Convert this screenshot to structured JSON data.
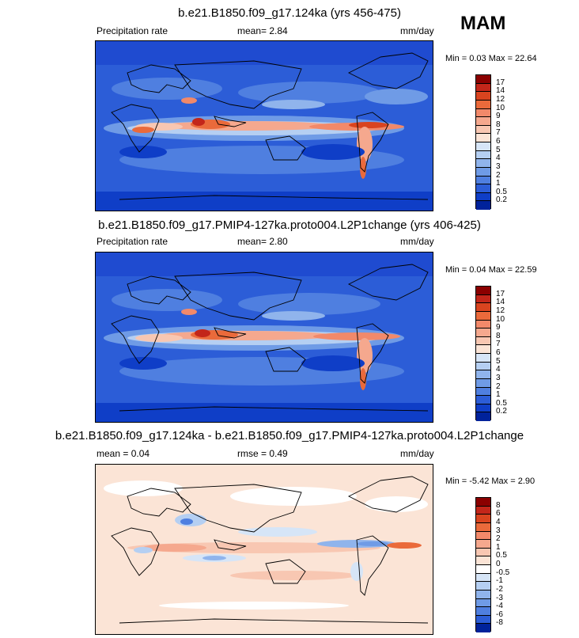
{
  "season": "MAM",
  "units": "mm/day",
  "panels": [
    {
      "title": "b.e21.B1850.f09_g17.124ka (yrs 456-475)",
      "left_label": "Precipitation rate",
      "center_label": "mean=  2.84",
      "right_label": "mm/day",
      "minmax": "Min =  0.03 Max =  22.64",
      "map_type": "absolute",
      "colorbar": {
        "labels": [
          "17",
          "14",
          "12",
          "10",
          "9",
          "8",
          "7",
          "6",
          "5",
          "4",
          "3",
          "2",
          "1",
          "0.5",
          "0.2"
        ],
        "colors": [
          "#8b0000",
          "#c3261a",
          "#d9441f",
          "#ea6a3b",
          "#f2896a",
          "#f5a88e",
          "#f8c7b2",
          "#fbe4d6",
          "#d6e5f7",
          "#b5cff2",
          "#90b4ec",
          "#6f9be6",
          "#4f7fe0",
          "#2c5dd7",
          "#0f3ec7",
          "#00229b"
        ]
      }
    },
    {
      "title": "b.e21.B1850.f09_g17.PMIP4-127ka.proto004.L2P1change (yrs 406-425)",
      "left_label": "Precipitation rate",
      "center_label": "mean=  2.80",
      "right_label": "mm/day",
      "minmax": "Min =  0.04 Max =  22.59",
      "map_type": "absolute",
      "colorbar": {
        "labels": [
          "17",
          "14",
          "12",
          "10",
          "9",
          "8",
          "7",
          "6",
          "5",
          "4",
          "3",
          "2",
          "1",
          "0.5",
          "0.2"
        ],
        "colors": [
          "#8b0000",
          "#c3261a",
          "#d9441f",
          "#ea6a3b",
          "#f2896a",
          "#f5a88e",
          "#f8c7b2",
          "#fbe4d6",
          "#d6e5f7",
          "#b5cff2",
          "#90b4ec",
          "#6f9be6",
          "#4f7fe0",
          "#2c5dd7",
          "#0f3ec7",
          "#00229b"
        ]
      }
    },
    {
      "title": "b.e21.B1850.f09_g17.124ka - b.e21.B1850.f09_g17.PMIP4-127ka.proto004.L2P1change",
      "left_label": "mean =  0.04",
      "center_label": "rmse =  0.49",
      "right_label": "mm/day",
      "minmax": "Min =  -5.42 Max =  2.90",
      "map_type": "difference",
      "colorbar": {
        "labels": [
          "8",
          "6",
          "4",
          "3",
          "2",
          "1",
          "0.5",
          "0",
          "-0.5",
          "-1",
          "-2",
          "-3",
          "-4",
          "-6",
          "-8"
        ],
        "colors": [
          "#8b0000",
          "#c3261a",
          "#d9441f",
          "#ea6a3b",
          "#f2896a",
          "#f5a88e",
          "#f8c7b2",
          "#fbe4d6",
          "#ffffff",
          "#d6e5f7",
          "#b5cff2",
          "#90b4ec",
          "#6f9be6",
          "#4f7fe0",
          "#2c5dd7",
          "#00229b"
        ]
      }
    }
  ]
}
